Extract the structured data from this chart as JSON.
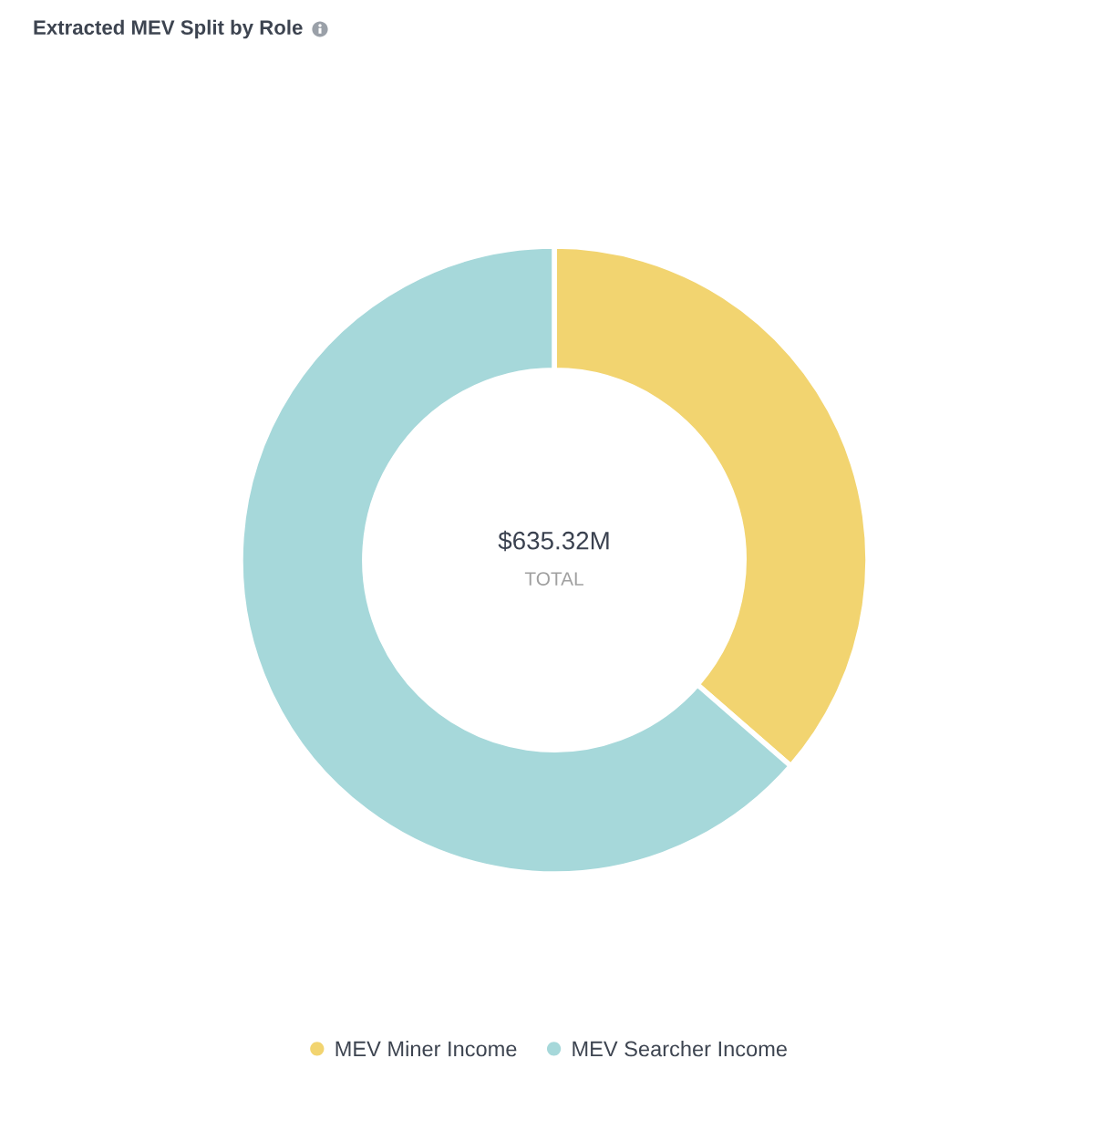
{
  "chart_data": {
    "type": "donut",
    "title": "Extracted MEV Split by Role",
    "categories": [
      "MEV Miner Income",
      "MEV Searcher Income"
    ],
    "values": [
      36.4,
      63.6
    ],
    "colors": [
      "#f2d470",
      "#a6d8da"
    ],
    "annotations": [
      "$635.32M",
      "TOTAL"
    ],
    "legend": "bottom"
  }
}
